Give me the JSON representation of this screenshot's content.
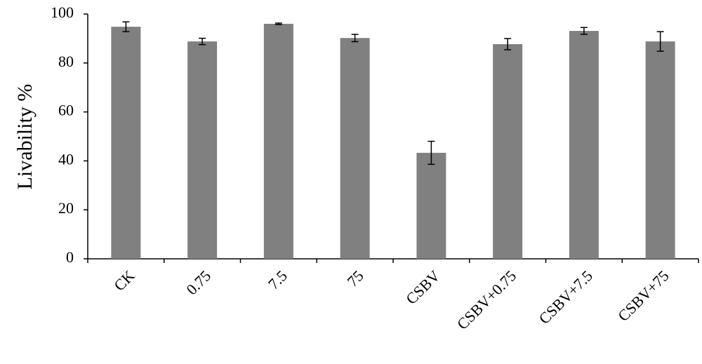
{
  "chart_data": {
    "type": "bar",
    "y_label": "Livability %",
    "categories": [
      "CK",
      "0.75",
      "7.5",
      "75",
      "CSBV",
      "CSBV+0.75",
      "CSBV+7.5",
      "CSBV+75"
    ],
    "values": [
      94.8,
      88.8,
      96,
      90.2,
      43.3,
      87.7,
      93.1,
      88.8
    ],
    "errors": [
      2,
      1.3,
      0.3,
      1.5,
      4.7,
      2.3,
      1.4,
      4
    ],
    "color": "#808080",
    "error_color": "#000000",
    "ylim": [
      0,
      100
    ],
    "yticks": [
      0,
      20,
      40,
      60,
      80,
      100
    ],
    "grid": false
  }
}
